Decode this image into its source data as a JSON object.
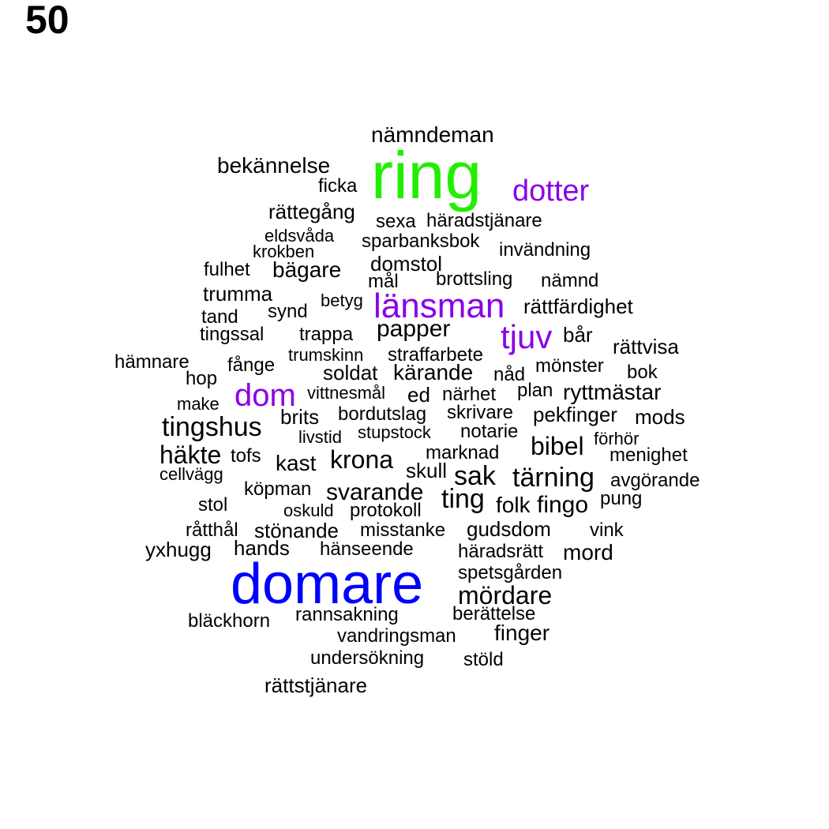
{
  "page_number": "50",
  "colors": {
    "default": "#000000",
    "green": "#22ee00",
    "purple": "#8a00e6",
    "blue": "#0000ff"
  },
  "words": [
    {
      "text": "nämndeman",
      "color": "default"
    },
    {
      "text": "ring",
      "color": "green"
    },
    {
      "text": "bekännelse",
      "color": "default"
    },
    {
      "text": "dotter",
      "color": "purple"
    },
    {
      "text": "ficka",
      "color": "default"
    },
    {
      "text": "rättegång",
      "color": "default"
    },
    {
      "text": "sexa",
      "color": "default"
    },
    {
      "text": "häradstjänare",
      "color": "default"
    },
    {
      "text": "eldsvåda",
      "color": "default"
    },
    {
      "text": "sparbanksbok",
      "color": "default"
    },
    {
      "text": "krokben",
      "color": "default"
    },
    {
      "text": "invändning",
      "color": "default"
    },
    {
      "text": "domstol",
      "color": "default"
    },
    {
      "text": "fulhet",
      "color": "default"
    },
    {
      "text": "bägare",
      "color": "default"
    },
    {
      "text": "mål",
      "color": "default"
    },
    {
      "text": "brottsling",
      "color": "default"
    },
    {
      "text": "nämnd",
      "color": "default"
    },
    {
      "text": "trumma",
      "color": "default"
    },
    {
      "text": "betyg",
      "color": "default"
    },
    {
      "text": "länsman",
      "color": "purple"
    },
    {
      "text": "rättfärdighet",
      "color": "default"
    },
    {
      "text": "synd",
      "color": "default"
    },
    {
      "text": "tand",
      "color": "default"
    },
    {
      "text": "papper",
      "color": "default"
    },
    {
      "text": "tjuv",
      "color": "purple"
    },
    {
      "text": "tingssal",
      "color": "default"
    },
    {
      "text": "trappa",
      "color": "default"
    },
    {
      "text": "bår",
      "color": "default"
    },
    {
      "text": "rättvisa",
      "color": "default"
    },
    {
      "text": "trumskinn",
      "color": "default"
    },
    {
      "text": "straffarbete",
      "color": "default"
    },
    {
      "text": "hämnare",
      "color": "default"
    },
    {
      "text": "fånge",
      "color": "default"
    },
    {
      "text": "mönster",
      "color": "default"
    },
    {
      "text": "soldat",
      "color": "default"
    },
    {
      "text": "kärande",
      "color": "default"
    },
    {
      "text": "nåd",
      "color": "default"
    },
    {
      "text": "bok",
      "color": "default"
    },
    {
      "text": "hop",
      "color": "default"
    },
    {
      "text": "dom",
      "color": "purple"
    },
    {
      "text": "vittnesmål",
      "color": "default"
    },
    {
      "text": "ed",
      "color": "default"
    },
    {
      "text": "närhet",
      "color": "default"
    },
    {
      "text": "plan",
      "color": "default"
    },
    {
      "text": "ryttmästar",
      "color": "default"
    },
    {
      "text": "make",
      "color": "default"
    },
    {
      "text": "brits",
      "color": "default"
    },
    {
      "text": "bordutslag",
      "color": "default"
    },
    {
      "text": "skrivare",
      "color": "default"
    },
    {
      "text": "pekfinger",
      "color": "default"
    },
    {
      "text": "mods",
      "color": "default"
    },
    {
      "text": "tingshus",
      "color": "default"
    },
    {
      "text": "stupstock",
      "color": "default"
    },
    {
      "text": "notarie",
      "color": "default"
    },
    {
      "text": "livstid",
      "color": "default"
    },
    {
      "text": "förhör",
      "color": "default"
    },
    {
      "text": "bibel",
      "color": "default"
    },
    {
      "text": "häkte",
      "color": "default"
    },
    {
      "text": "tofs",
      "color": "default"
    },
    {
      "text": "marknad",
      "color": "default"
    },
    {
      "text": "menighet",
      "color": "default"
    },
    {
      "text": "kast",
      "color": "default"
    },
    {
      "text": "krona",
      "color": "default"
    },
    {
      "text": "cellvägg",
      "color": "default"
    },
    {
      "text": "skull",
      "color": "default"
    },
    {
      "text": "sak",
      "color": "default"
    },
    {
      "text": "tärning",
      "color": "default"
    },
    {
      "text": "avgörande",
      "color": "default"
    },
    {
      "text": "köpman",
      "color": "default"
    },
    {
      "text": "svarande",
      "color": "default"
    },
    {
      "text": "pung",
      "color": "default"
    },
    {
      "text": "ting",
      "color": "default"
    },
    {
      "text": "stol",
      "color": "default"
    },
    {
      "text": "folk",
      "color": "default"
    },
    {
      "text": "fingo",
      "color": "default"
    },
    {
      "text": "oskuld",
      "color": "default"
    },
    {
      "text": "protokoll",
      "color": "default"
    },
    {
      "text": "gudsdom",
      "color": "default"
    },
    {
      "text": "råtthål",
      "color": "default"
    },
    {
      "text": "stönande",
      "color": "default"
    },
    {
      "text": "misstanke",
      "color": "default"
    },
    {
      "text": "vink",
      "color": "default"
    },
    {
      "text": "hands",
      "color": "default"
    },
    {
      "text": "yxhugg",
      "color": "default"
    },
    {
      "text": "hänseende",
      "color": "default"
    },
    {
      "text": "häradsrätt",
      "color": "default"
    },
    {
      "text": "mord",
      "color": "default"
    },
    {
      "text": "spetsgården",
      "color": "default"
    },
    {
      "text": "domare",
      "color": "blue"
    },
    {
      "text": "mördare",
      "color": "default"
    },
    {
      "text": "rannsakning",
      "color": "default"
    },
    {
      "text": "berättelse",
      "color": "default"
    },
    {
      "text": "bläckhorn",
      "color": "default"
    },
    {
      "text": "finger",
      "color": "default"
    },
    {
      "text": "vandringsman",
      "color": "default"
    },
    {
      "text": "undersökning",
      "color": "default"
    },
    {
      "text": "stöld",
      "color": "default"
    },
    {
      "text": "rättstjänare",
      "color": "default"
    }
  ]
}
